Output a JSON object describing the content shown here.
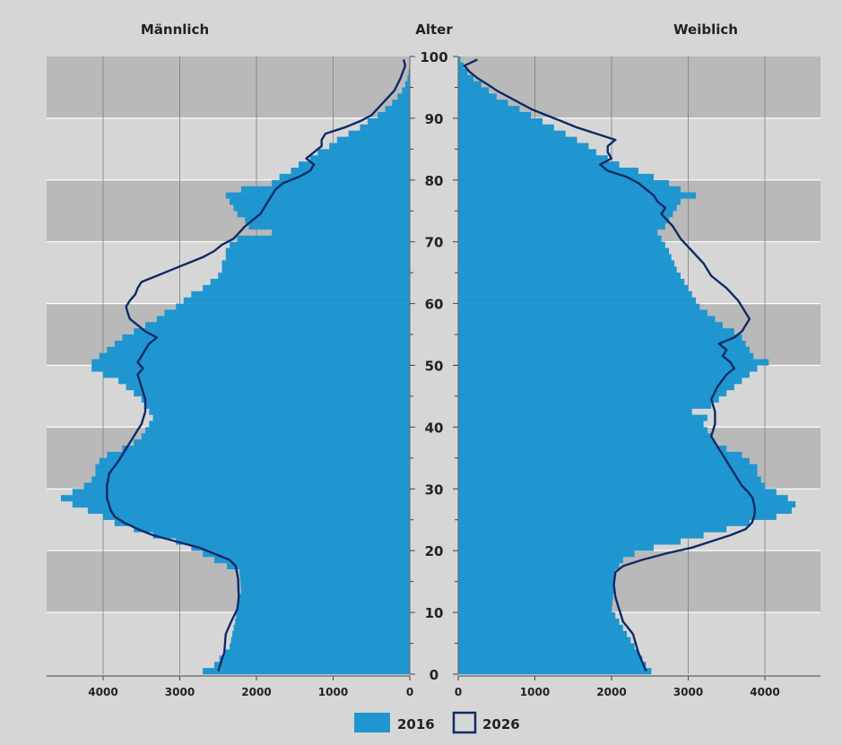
{
  "chart_data": {
    "type": "population-pyramid",
    "header": {
      "left": "Männlich",
      "center": "Alter",
      "right": "Weiblich"
    },
    "age_ticks": [
      0,
      10,
      20,
      30,
      40,
      50,
      60,
      70,
      80,
      90,
      100
    ],
    "left_axis": {
      "ticks": [
        4000,
        3000,
        2000,
        1000,
        0
      ],
      "range": [
        0,
        4750
      ]
    },
    "right_axis": {
      "ticks": [
        0,
        1000,
        2000,
        3000,
        4000
      ],
      "range": [
        0,
        4750
      ]
    },
    "legend": [
      {
        "label": "2016",
        "style": "filled",
        "color": "#1f96d0"
      },
      {
        "label": "2026",
        "style": "outline",
        "color": "#0f2a66"
      }
    ],
    "colors": {
      "background": "#d6d6d6",
      "band": "#b9b9b9",
      "bar_2016": "#1f96d0",
      "line_2026": "#0f2a66",
      "divider": "#ffffff",
      "gridline": "#7d7d7d",
      "text": "#222222"
    },
    "series_2016_male_anchors": [
      [
        0,
        2700
      ],
      [
        1,
        2550
      ],
      [
        4,
        2350
      ],
      [
        8,
        2280
      ],
      [
        10,
        2250
      ],
      [
        13,
        2200
      ],
      [
        16,
        2220
      ],
      [
        18,
        2550
      ],
      [
        19,
        2700
      ],
      [
        20,
        2850
      ],
      [
        21,
        3050
      ],
      [
        22,
        3350
      ],
      [
        23,
        3600
      ],
      [
        24,
        3850
      ],
      [
        25,
        4000
      ],
      [
        26,
        4200
      ],
      [
        27,
        4400
      ],
      [
        28,
        4550
      ],
      [
        29,
        4400
      ],
      [
        30,
        4250
      ],
      [
        31,
        4150
      ],
      [
        32,
        4100
      ],
      [
        33,
        4100
      ],
      [
        34,
        4050
      ],
      [
        35,
        3950
      ],
      [
        36,
        3750
      ],
      [
        37,
        3600
      ],
      [
        38,
        3500
      ],
      [
        39,
        3450
      ],
      [
        40,
        3400
      ],
      [
        41,
        3350
      ],
      [
        42,
        3400
      ],
      [
        43,
        3450
      ],
      [
        44,
        3500
      ],
      [
        45,
        3600
      ],
      [
        46,
        3700
      ],
      [
        47,
        3800
      ],
      [
        48,
        4000
      ],
      [
        49,
        4150
      ],
      [
        50,
        4150
      ],
      [
        51,
        4050
      ],
      [
        52,
        3950
      ],
      [
        53,
        3850
      ],
      [
        54,
        3750
      ],
      [
        55,
        3600
      ],
      [
        56,
        3450
      ],
      [
        57,
        3300
      ],
      [
        58,
        3200
      ],
      [
        59,
        3050
      ],
      [
        60,
        2950
      ],
      [
        61,
        2850
      ],
      [
        62,
        2700
      ],
      [
        63,
        2600
      ],
      [
        64,
        2500
      ],
      [
        65,
        2450
      ],
      [
        66,
        2450
      ],
      [
        67,
        2400
      ],
      [
        68,
        2400
      ],
      [
        69,
        2350
      ],
      [
        70,
        2250
      ],
      [
        71,
        1800
      ],
      [
        72,
        2100
      ],
      [
        73,
        2150
      ],
      [
        74,
        2250
      ],
      [
        75,
        2300
      ],
      [
        76,
        2350
      ],
      [
        77,
        2400
      ],
      [
        78,
        2200
      ],
      [
        79,
        1800
      ],
      [
        80,
        1700
      ],
      [
        81,
        1550
      ],
      [
        82,
        1450
      ],
      [
        83,
        1300
      ],
      [
        84,
        1200
      ],
      [
        85,
        1050
      ],
      [
        86,
        950
      ],
      [
        87,
        800
      ],
      [
        88,
        650
      ],
      [
        89,
        550
      ],
      [
        90,
        420
      ],
      [
        91,
        320
      ],
      [
        92,
        230
      ],
      [
        93,
        160
      ],
      [
        94,
        100
      ],
      [
        95,
        60
      ],
      [
        96,
        30
      ],
      [
        97,
        15
      ],
      [
        98,
        5
      ],
      [
        100,
        0
      ]
    ],
    "series_2016_female_anchors": [
      [
        0,
        2520
      ],
      [
        1,
        2450
      ],
      [
        4,
        2300
      ],
      [
        8,
        2100
      ],
      [
        10,
        2000
      ],
      [
        13,
        2030
      ],
      [
        16,
        2050
      ],
      [
        17,
        2100
      ],
      [
        18,
        2150
      ],
      [
        19,
        2300
      ],
      [
        20,
        2550
      ],
      [
        21,
        2900
      ],
      [
        22,
        3200
      ],
      [
        23,
        3500
      ],
      [
        24,
        3800
      ],
      [
        25,
        4150
      ],
      [
        26,
        4350
      ],
      [
        27,
        4400
      ],
      [
        28,
        4300
      ],
      [
        29,
        4150
      ],
      [
        30,
        4000
      ],
      [
        31,
        3950
      ],
      [
        32,
        3900
      ],
      [
        33,
        3900
      ],
      [
        34,
        3800
      ],
      [
        35,
        3700
      ],
      [
        36,
        3500
      ],
      [
        37,
        3350
      ],
      [
        38,
        3300
      ],
      [
        39,
        3250
      ],
      [
        40,
        3200
      ],
      [
        41,
        3250
      ],
      [
        42,
        3050
      ],
      [
        43,
        3300
      ],
      [
        44,
        3400
      ],
      [
        45,
        3500
      ],
      [
        46,
        3600
      ],
      [
        47,
        3700
      ],
      [
        48,
        3800
      ],
      [
        49,
        3900
      ],
      [
        50,
        4050
      ],
      [
        51,
        3850
      ],
      [
        52,
        3800
      ],
      [
        53,
        3750
      ],
      [
        54,
        3700
      ],
      [
        55,
        3600
      ],
      [
        56,
        3450
      ],
      [
        57,
        3350
      ],
      [
        58,
        3250
      ],
      [
        59,
        3150
      ],
      [
        60,
        3100
      ],
      [
        61,
        3050
      ],
      [
        62,
        3000
      ],
      [
        63,
        2950
      ],
      [
        64,
        2900
      ],
      [
        65,
        2850
      ],
      [
        66,
        2820
      ],
      [
        67,
        2780
      ],
      [
        68,
        2750
      ],
      [
        69,
        2700
      ],
      [
        70,
        2650
      ],
      [
        71,
        2600
      ],
      [
        72,
        2700
      ],
      [
        73,
        2750
      ],
      [
        74,
        2800
      ],
      [
        75,
        2850
      ],
      [
        76,
        2900
      ],
      [
        77,
        3100
      ],
      [
        78,
        2900
      ],
      [
        79,
        2750
      ],
      [
        80,
        2550
      ],
      [
        81,
        2350
      ],
      [
        82,
        2100
      ],
      [
        83,
        1950
      ],
      [
        84,
        1800
      ],
      [
        85,
        1700
      ],
      [
        86,
        1550
      ],
      [
        87,
        1400
      ],
      [
        88,
        1250
      ],
      [
        89,
        1100
      ],
      [
        90,
        950
      ],
      [
        91,
        800
      ],
      [
        92,
        650
      ],
      [
        93,
        500
      ],
      [
        94,
        400
      ],
      [
        95,
        300
      ],
      [
        96,
        200
      ],
      [
        97,
        120
      ],
      [
        98,
        70
      ],
      [
        99,
        30
      ],
      [
        100,
        0
      ]
    ],
    "series_2026_male_anchors": [
      [
        0,
        2500
      ],
      [
        3,
        2420
      ],
      [
        6,
        2400
      ],
      [
        8,
        2330
      ],
      [
        10,
        2250
      ],
      [
        12,
        2230
      ],
      [
        15,
        2240
      ],
      [
        17,
        2270
      ],
      [
        18,
        2350
      ],
      [
        19,
        2550
      ],
      [
        20,
        2750
      ],
      [
        21,
        3050
      ],
      [
        22,
        3350
      ],
      [
        23,
        3550
      ],
      [
        24,
        3720
      ],
      [
        25,
        3850
      ],
      [
        26,
        3900
      ],
      [
        28,
        3950
      ],
      [
        30,
        3950
      ],
      [
        32,
        3920
      ],
      [
        34,
        3800
      ],
      [
        36,
        3700
      ],
      [
        38,
        3600
      ],
      [
        40,
        3500
      ],
      [
        42,
        3450
      ],
      [
        44,
        3450
      ],
      [
        46,
        3500
      ],
      [
        48,
        3550
      ],
      [
        49,
        3480
      ],
      [
        50,
        3550
      ],
      [
        51,
        3500
      ],
      [
        52,
        3450
      ],
      [
        53,
        3400
      ],
      [
        54,
        3300
      ],
      [
        55,
        3450
      ],
      [
        56,
        3550
      ],
      [
        57,
        3650
      ],
      [
        58,
        3680
      ],
      [
        59,
        3700
      ],
      [
        60,
        3650
      ],
      [
        61,
        3580
      ],
      [
        62,
        3550
      ],
      [
        63,
        3500
      ],
      [
        64,
        3300
      ],
      [
        65,
        3100
      ],
      [
        66,
        2900
      ],
      [
        67,
        2700
      ],
      [
        68,
        2550
      ],
      [
        69,
        2450
      ],
      [
        70,
        2300
      ],
      [
        72,
        2150
      ],
      [
        74,
        1950
      ],
      [
        76,
        1850
      ],
      [
        78,
        1750
      ],
      [
        79,
        1650
      ],
      [
        80,
        1450
      ],
      [
        81,
        1300
      ],
      [
        82,
        1250
      ],
      [
        83,
        1350
      ],
      [
        84,
        1250
      ],
      [
        85,
        1150
      ],
      [
        86,
        1150
      ],
      [
        87,
        1100
      ],
      [
        88,
        850
      ],
      [
        89,
        650
      ],
      [
        90,
        500
      ],
      [
        92,
        350
      ],
      [
        94,
        200
      ],
      [
        96,
        120
      ],
      [
        98,
        60
      ],
      [
        99,
        80
      ]
    ],
    "series_2026_female_anchors": [
      [
        0,
        2450
      ],
      [
        3,
        2350
      ],
      [
        6,
        2280
      ],
      [
        8,
        2150
      ],
      [
        10,
        2100
      ],
      [
        12,
        2050
      ],
      [
        14,
        2030
      ],
      [
        15,
        2040
      ],
      [
        16,
        2050
      ],
      [
        17,
        2150
      ],
      [
        18,
        2400
      ],
      [
        19,
        2700
      ],
      [
        20,
        3050
      ],
      [
        21,
        3300
      ],
      [
        22,
        3550
      ],
      [
        23,
        3750
      ],
      [
        24,
        3830
      ],
      [
        25,
        3860
      ],
      [
        26,
        3870
      ],
      [
        27,
        3860
      ],
      [
        28,
        3840
      ],
      [
        29,
        3780
      ],
      [
        30,
        3700
      ],
      [
        32,
        3600
      ],
      [
        34,
        3500
      ],
      [
        36,
        3400
      ],
      [
        38,
        3300
      ],
      [
        40,
        3350
      ],
      [
        42,
        3350
      ],
      [
        44,
        3300
      ],
      [
        46,
        3380
      ],
      [
        48,
        3500
      ],
      [
        49,
        3600
      ],
      [
        50,
        3550
      ],
      [
        51,
        3450
      ],
      [
        52,
        3500
      ],
      [
        53,
        3400
      ],
      [
        54,
        3600
      ],
      [
        55,
        3700
      ],
      [
        56,
        3750
      ],
      [
        57,
        3800
      ],
      [
        58,
        3750
      ],
      [
        59,
        3700
      ],
      [
        60,
        3650
      ],
      [
        62,
        3500
      ],
      [
        64,
        3300
      ],
      [
        66,
        3200
      ],
      [
        68,
        3050
      ],
      [
        70,
        2900
      ],
      [
        72,
        2800
      ],
      [
        74,
        2650
      ],
      [
        75,
        2700
      ],
      [
        76,
        2600
      ],
      [
        77,
        2550
      ],
      [
        78,
        2450
      ],
      [
        79,
        2350
      ],
      [
        80,
        2200
      ],
      [
        81,
        1950
      ],
      [
        82,
        1850
      ],
      [
        83,
        2000
      ],
      [
        84,
        1950
      ],
      [
        85,
        1950
      ],
      [
        86,
        2050
      ],
      [
        87,
        1800
      ],
      [
        88,
        1550
      ],
      [
        89,
        1350
      ],
      [
        90,
        1150
      ],
      [
        91,
        950
      ],
      [
        92,
        800
      ],
      [
        93,
        650
      ],
      [
        94,
        500
      ],
      [
        95,
        380
      ],
      [
        96,
        250
      ],
      [
        97,
        150
      ],
      [
        98,
        80
      ],
      [
        99,
        250
      ]
    ]
  }
}
